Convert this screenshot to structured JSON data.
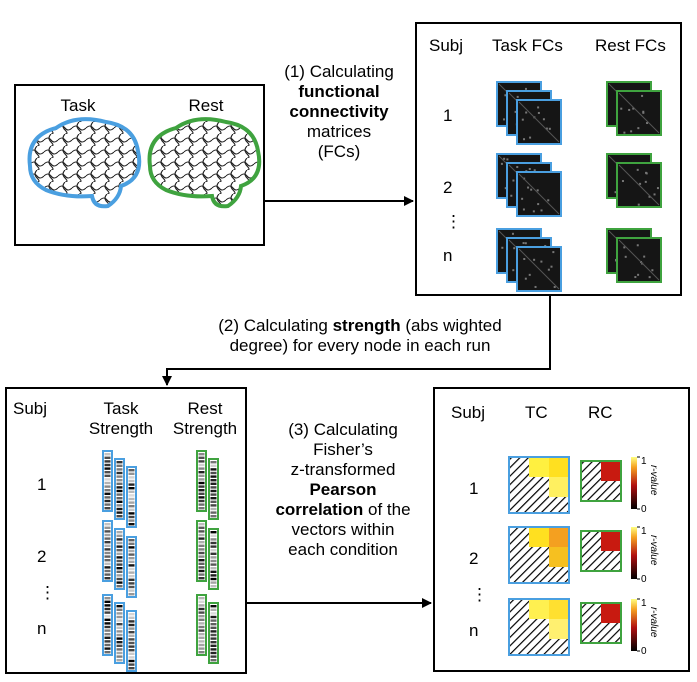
{
  "colors": {
    "task": "#4a9fe0",
    "rest": "#3fa33f",
    "arrow": "#000000"
  },
  "box1": {
    "task_label": "Task",
    "rest_label": "Rest"
  },
  "step1": {
    "line1": "(1) Calculating",
    "bold1": "functional",
    "bold2": "connectivity",
    "line4": "matrices",
    "line5": "(FCs)"
  },
  "box2": {
    "col_subj": "Subj",
    "col_task": "Task FCs",
    "col_rest": "Rest FCs",
    "rows": [
      "1",
      "2",
      "⋮",
      "n"
    ]
  },
  "step2": {
    "pre": "(2) Calculating ",
    "bold": "strength",
    "post": " (abs wighted",
    "line2": "degree) for every node in each run"
  },
  "box3": {
    "col_subj": "Subj",
    "col_task_1": "Task",
    "col_task_2": "Strength",
    "col_rest_1": "Rest",
    "col_rest_2": "Strength",
    "rows": [
      "1",
      "2",
      "⋮",
      "n"
    ]
  },
  "step3": {
    "line1": "(3) Calculating",
    "line2": "Fisher’s",
    "line3": "z-transformed",
    "bold1": "Pearson",
    "bold2": "correlation",
    "post2": " of the",
    "line6": "vectors within",
    "line7": "each condition"
  },
  "box4": {
    "col_subj": "Subj",
    "col_tc": "TC",
    "col_rc": "RC",
    "rows": [
      "1",
      "2",
      "⋮",
      "n"
    ],
    "cbar_max": "1",
    "cbar_min": "0",
    "cbar_label": "r-value"
  }
}
